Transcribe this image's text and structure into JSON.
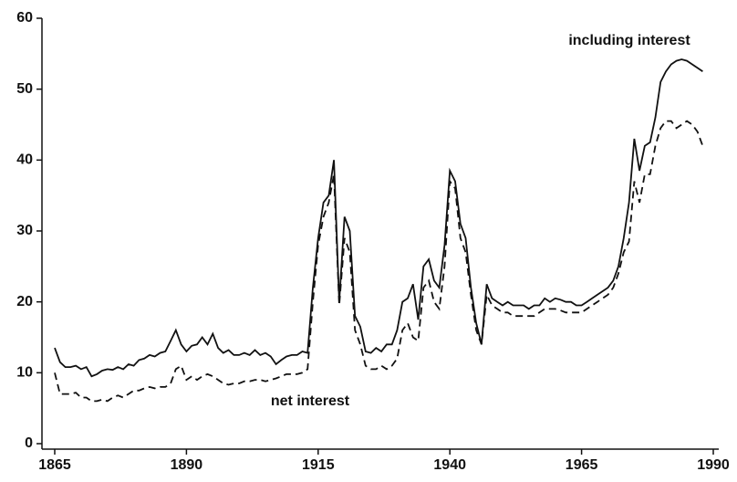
{
  "chart_data": {
    "type": "line",
    "x": [
      1865,
      1866,
      1867,
      1868,
      1869,
      1870,
      1871,
      1872,
      1873,
      1874,
      1875,
      1876,
      1877,
      1878,
      1879,
      1880,
      1881,
      1882,
      1883,
      1884,
      1885,
      1886,
      1887,
      1888,
      1889,
      1890,
      1891,
      1892,
      1893,
      1894,
      1895,
      1896,
      1897,
      1898,
      1899,
      1900,
      1901,
      1902,
      1903,
      1904,
      1905,
      1906,
      1907,
      1908,
      1909,
      1910,
      1911,
      1912,
      1913,
      1914,
      1915,
      1916,
      1917,
      1918,
      1919,
      1920,
      1921,
      1922,
      1923,
      1924,
      1925,
      1926,
      1927,
      1928,
      1929,
      1930,
      1931,
      1932,
      1933,
      1934,
      1935,
      1936,
      1937,
      1938,
      1939,
      1940,
      1941,
      1942,
      1943,
      1944,
      1945,
      1946,
      1947,
      1948,
      1949,
      1950,
      1951,
      1952,
      1953,
      1954,
      1955,
      1956,
      1957,
      1958,
      1959,
      1960,
      1961,
      1962,
      1963,
      1964,
      1965,
      1966,
      1967,
      1968,
      1969,
      1970,
      1971,
      1972,
      1973,
      1974,
      1975,
      1976,
      1977,
      1978,
      1979,
      1980,
      1981,
      1982,
      1983,
      1984,
      1985,
      1986,
      1987,
      1988
    ],
    "series": [
      {
        "name": "including interest",
        "color": "#111111",
        "style": "solid",
        "values": [
          13.5,
          11.5,
          10.8,
          10.8,
          11,
          10.5,
          10.8,
          9.5,
          9.8,
          10.3,
          10.5,
          10.4,
          10.8,
          10.5,
          11.2,
          11,
          11.8,
          12,
          12.5,
          12.3,
          12.8,
          13,
          14.5,
          16,
          14,
          13,
          13.8,
          14,
          15,
          14,
          15.5,
          13.5,
          12.8,
          13.2,
          12.5,
          12.5,
          12.8,
          12.5,
          13.2,
          12.5,
          12.8,
          12.3,
          11.2,
          11.8,
          12.3,
          12.5,
          12.5,
          13,
          12.8,
          22,
          29,
          34,
          35,
          40,
          20,
          32,
          30,
          18,
          16.5,
          13,
          12.8,
          13.5,
          13,
          14,
          14,
          16,
          20,
          20.5,
          22.5,
          17.5,
          25,
          26,
          23,
          22,
          28,
          38.5,
          37,
          31,
          29,
          22,
          17,
          14,
          22.5,
          20.5,
          20,
          19.5,
          20,
          19.5,
          19.5,
          19.5,
          19,
          19.5,
          19.5,
          20.5,
          20,
          20.5,
          20.3,
          20,
          20,
          19.5,
          19.5,
          20,
          20.5,
          21,
          21.5,
          22,
          23,
          25,
          29,
          34,
          43,
          38.5,
          42,
          42.5,
          46,
          51,
          52.5,
          53.5,
          54,
          54.2,
          54,
          53.5,
          53,
          52.5
        ]
      },
      {
        "name": "net interest",
        "color": "#111111",
        "style": "dashed",
        "values": [
          10,
          7,
          7,
          7,
          7.2,
          6.5,
          6.5,
          6,
          6,
          6.2,
          6,
          6.5,
          6.8,
          6.5,
          7,
          7.5,
          7.5,
          7.8,
          8,
          7.8,
          8,
          8,
          8.5,
          10.5,
          11,
          9,
          9.5,
          9,
          9.5,
          9.8,
          9.5,
          9,
          8.5,
          8.3,
          8.5,
          8.5,
          8.8,
          8.8,
          9,
          9,
          8.8,
          9,
          9.2,
          9.5,
          9.8,
          9.8,
          9.8,
          10,
          10.5,
          20,
          28,
          32,
          34,
          38,
          19.5,
          29,
          27,
          16,
          14,
          11,
          10.5,
          10.5,
          11,
          10.5,
          11,
          12,
          16,
          17,
          15,
          14.5,
          22,
          23,
          20,
          19,
          25,
          37,
          36,
          29,
          27,
          21,
          16,
          14,
          21,
          19.5,
          19,
          18.5,
          18.5,
          18,
          18,
          18,
          18,
          18,
          18.5,
          19,
          19,
          19,
          18.8,
          18.5,
          18.5,
          18.5,
          18.5,
          19,
          19.5,
          20,
          20.5,
          21,
          22,
          24,
          27,
          28.5,
          37,
          34,
          38,
          38,
          42,
          44.5,
          45.5,
          45.5,
          44.5,
          45,
          45.5,
          45,
          44,
          42
        ]
      }
    ],
    "xlim": [
      1865,
      1990
    ],
    "xticks": [
      1865,
      1890,
      1915,
      1940,
      1965,
      1990
    ],
    "ylim": [
      0,
      60
    ],
    "yticks": [
      0,
      10,
      20,
      30,
      40,
      50,
      60
    ]
  }
}
